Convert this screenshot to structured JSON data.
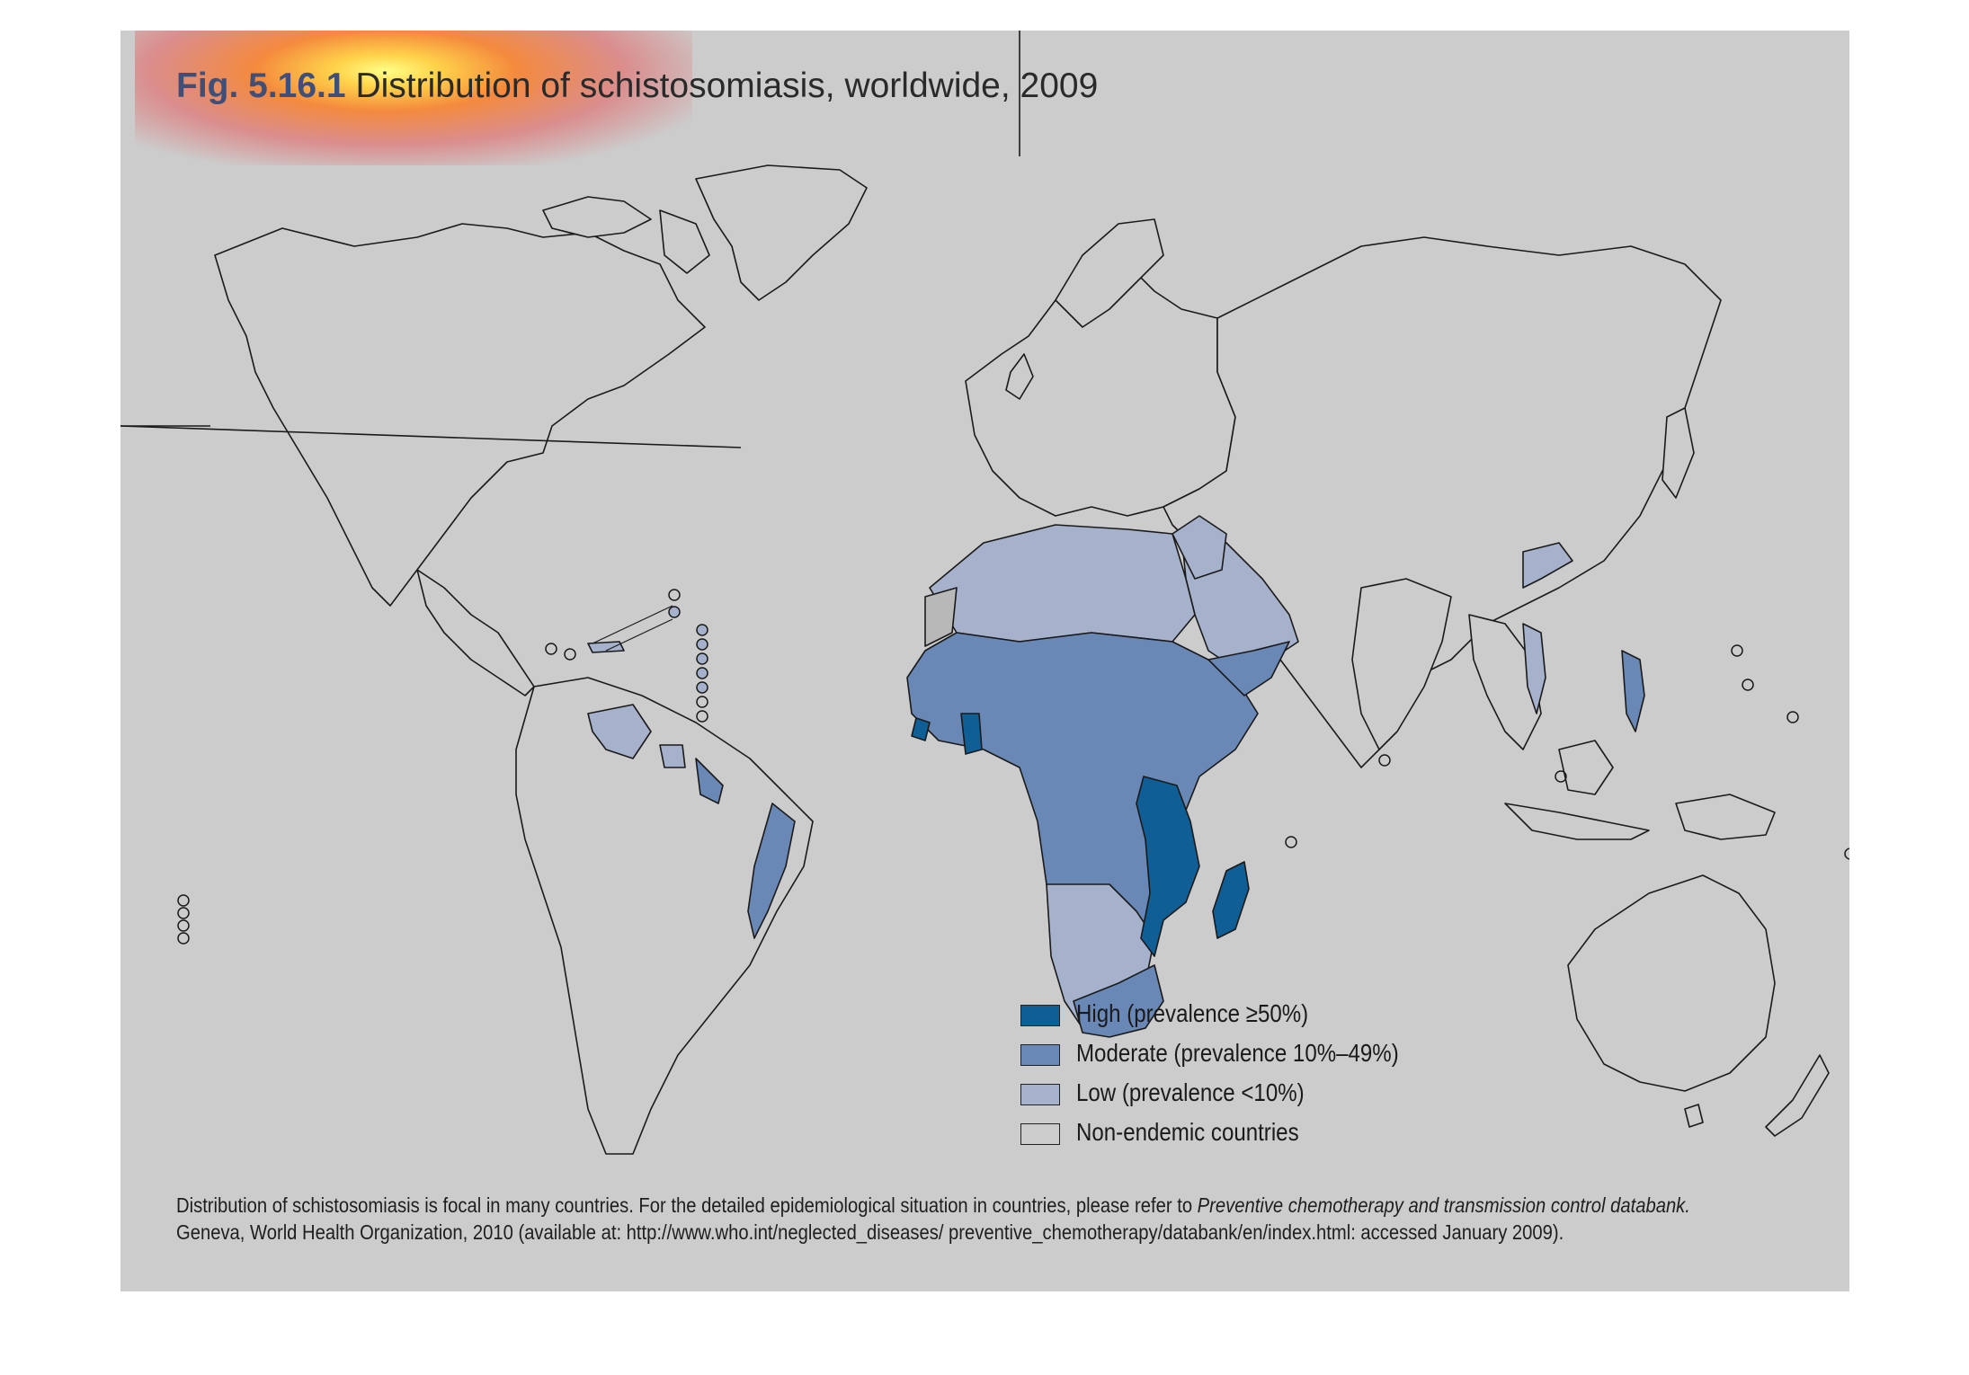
{
  "title": {
    "fig_label": "Fig. 5.16.1",
    "text": "Distribution of schistosomiasis, worldwide, 2009"
  },
  "colors": {
    "high": "#0f5f96",
    "moderate": "#6a88b6",
    "low": "#a6b2cc",
    "non_endemic": "#cccccc",
    "panel": "#cccccc"
  },
  "legend": [
    {
      "key": "high",
      "label": "High (prevalence ≥50%)"
    },
    {
      "key": "moderate",
      "label": "Moderate (prevalence 10%–49%)"
    },
    {
      "key": "low",
      "label": "Low (prevalence <10%)"
    },
    {
      "key": "non_endemic",
      "label": "Non-endemic countries"
    }
  ],
  "note": {
    "line1_plain": "Distribution of schistosomiasis is focal in many countries. For the detailed epidemiological situation in countries, please refer to ",
    "line1_italic": "Preventive chemotherapy and transmission control databank.",
    "line2": "Geneva, World Health Organization, 2010 (available at: http://www.who.int/neglected_diseases/ preventive_chemotherapy/databank/en/index.html: accessed January 2009)."
  }
}
